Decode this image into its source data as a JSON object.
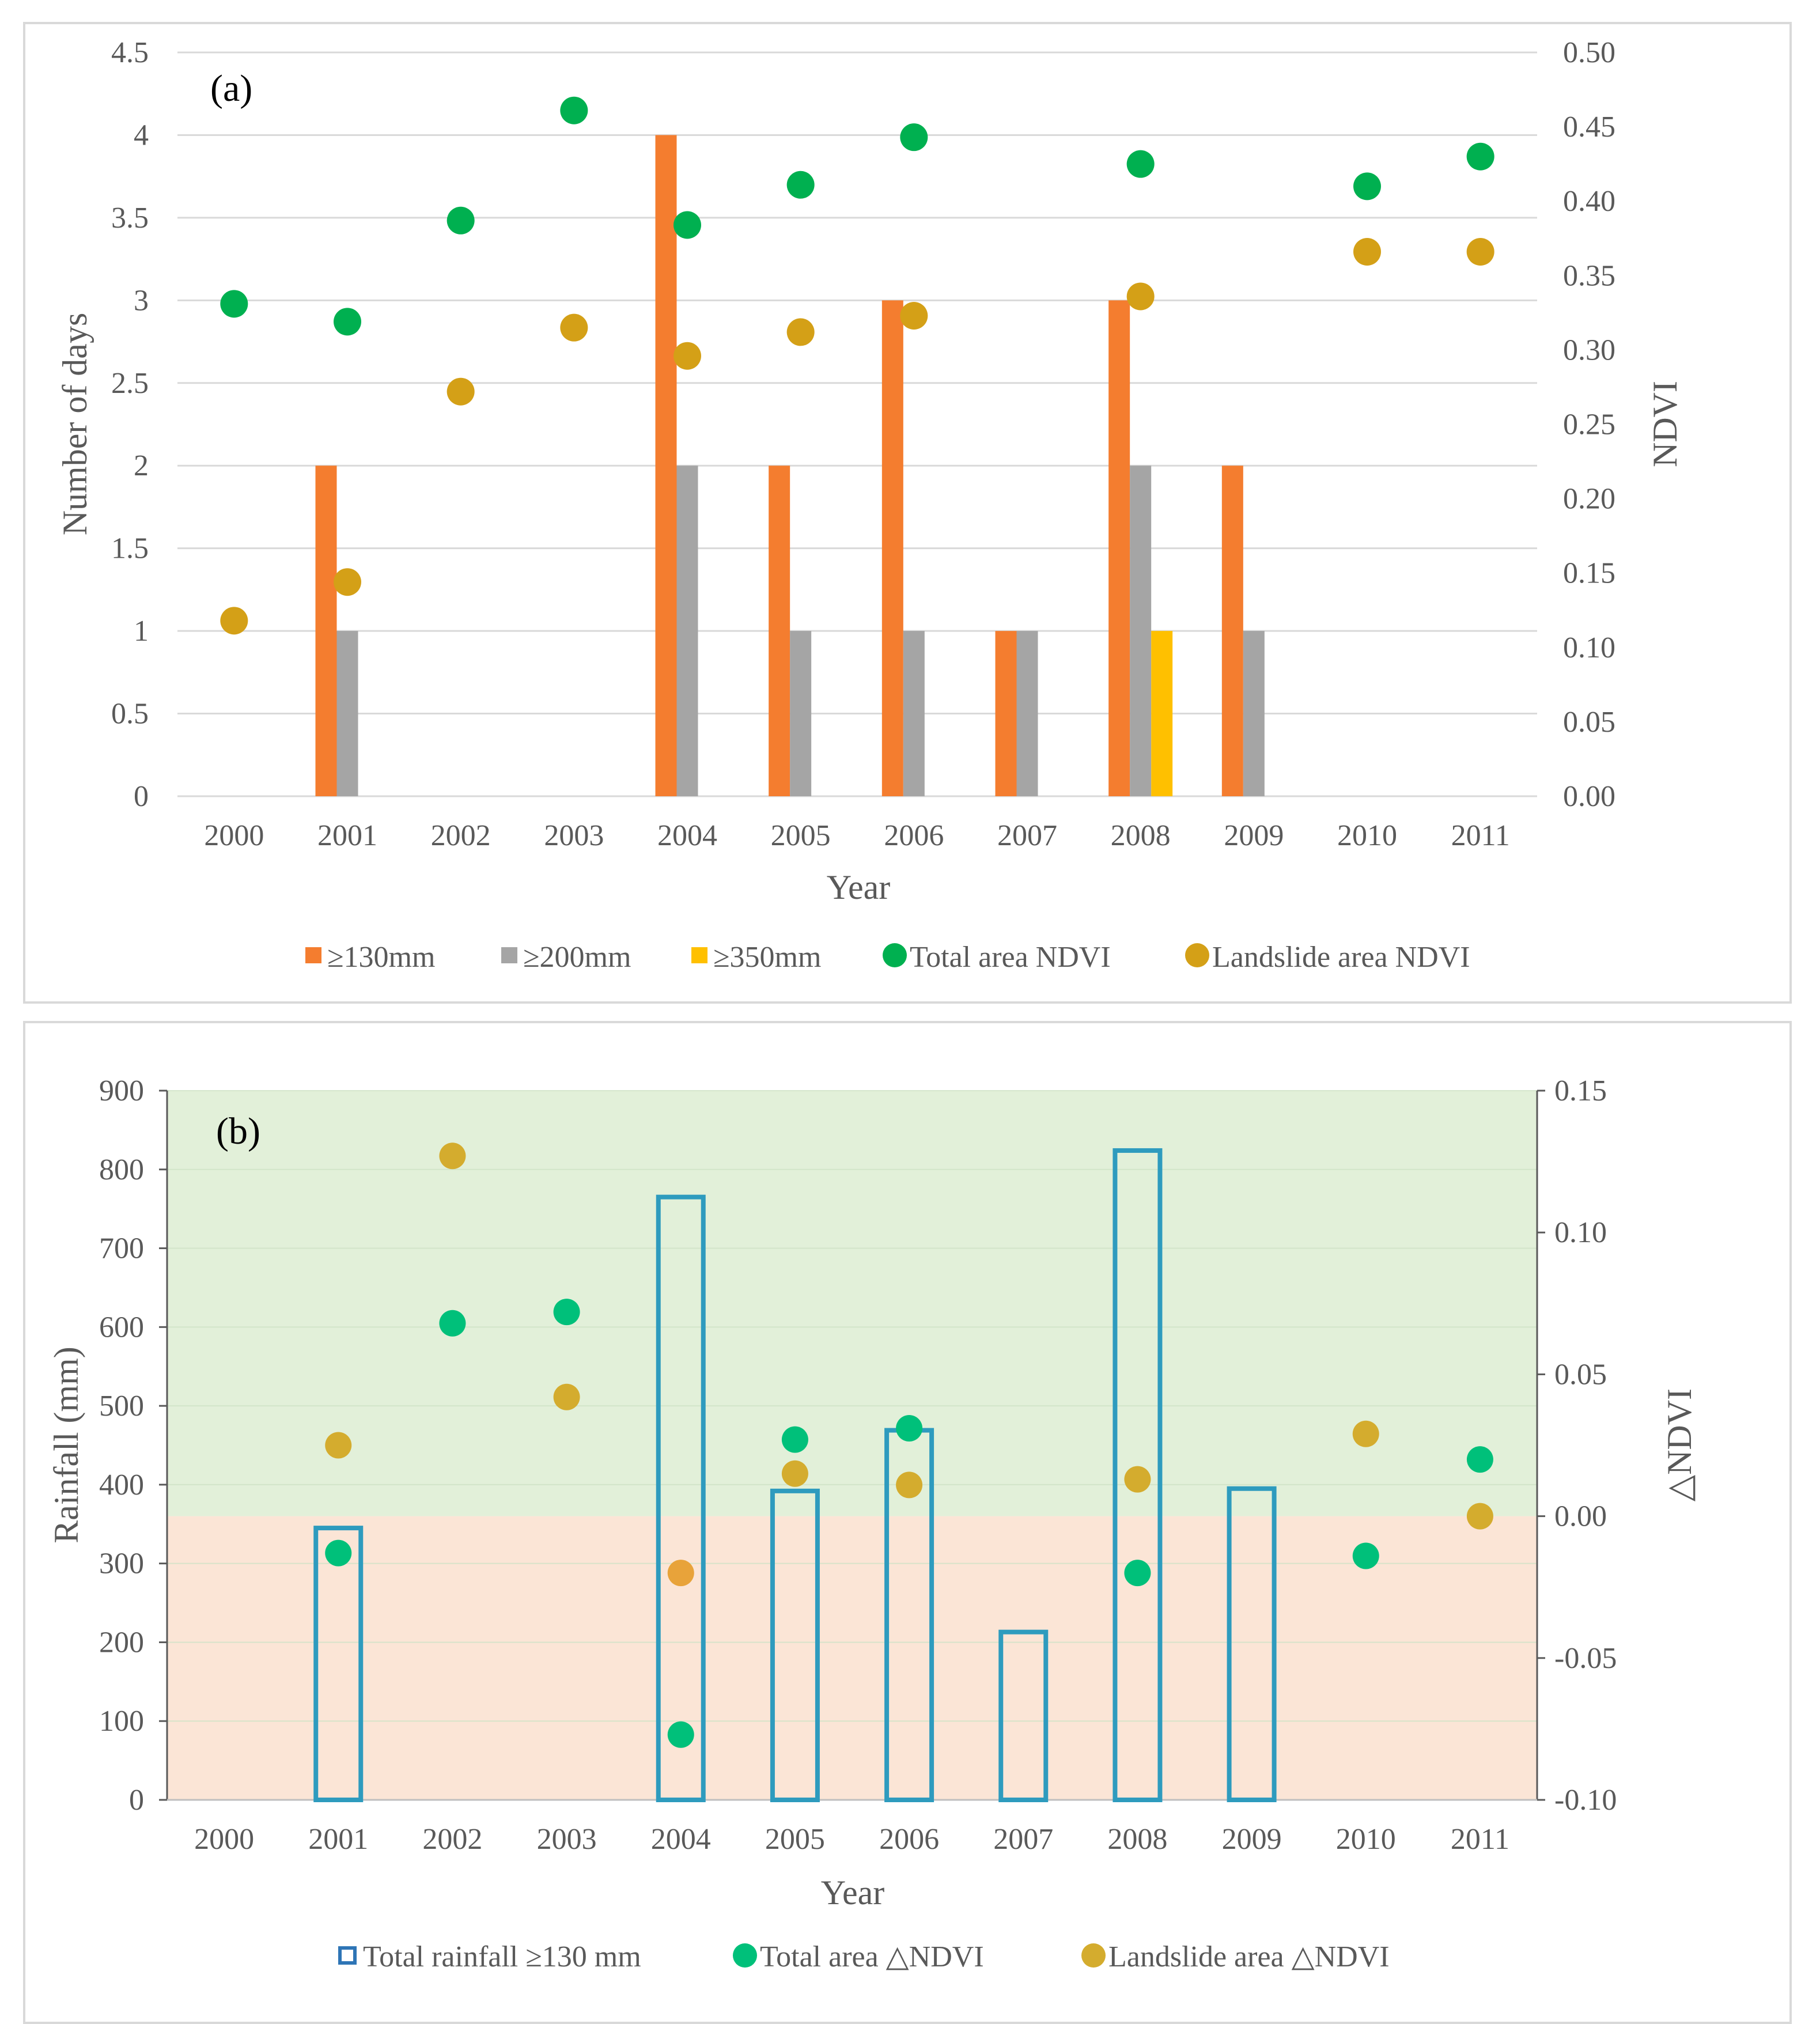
{
  "chart_data": [
    {
      "type": "bar",
      "panel_label": "(a)",
      "xlabel": "Year",
      "ylabel": "Number of days",
      "y2label": "NDVI",
      "ylim": [
        0,
        4.5
      ],
      "y2lim": [
        0,
        0.5
      ],
      "yticks": [
        "0",
        "0.5",
        "1",
        "1.5",
        "2",
        "2.5",
        "3",
        "3.5",
        "4",
        "4.5"
      ],
      "y2ticks": [
        "0.00",
        "0.05",
        "0.10",
        "0.15",
        "0.20",
        "0.25",
        "0.30",
        "0.35",
        "0.40",
        "0.45",
        "0.50"
      ],
      "categories": [
        "2000",
        "2001",
        "2002",
        "2003",
        "2004",
        "2005",
        "2006",
        "2007",
        "2008",
        "2009",
        "2010",
        "2011"
      ],
      "grid": true,
      "legend_position": "bottom",
      "series": [
        {
          "name": "≥130mm",
          "type": "bar",
          "axis": "left",
          "color": "#F47D2F",
          "values": [
            0,
            2,
            0,
            0,
            4,
            2,
            3,
            1,
            3,
            2,
            0,
            0
          ]
        },
        {
          "name": "≥200mm",
          "type": "bar",
          "axis": "left",
          "color": "#A5A5A5",
          "values": [
            0,
            1,
            0,
            0,
            2,
            1,
            1,
            1,
            2,
            1,
            0,
            0
          ]
        },
        {
          "name": "≥350mm",
          "type": "bar",
          "axis": "left",
          "color": "#FFC000",
          "values": [
            0,
            0,
            0,
            0,
            0,
            0,
            0,
            0,
            1,
            0,
            0,
            0
          ]
        },
        {
          "name": "Total area NDVI",
          "type": "scatter",
          "axis": "right",
          "color": "#00B050",
          "values": [
            0.331,
            0.319,
            0.387,
            0.461,
            0.384,
            0.411,
            0.443,
            null,
            0.425,
            null,
            0.41,
            0.43
          ]
        },
        {
          "name": "Landslide area NDVI",
          "type": "scatter",
          "axis": "right",
          "color": "#D4A017",
          "values": [
            0.118,
            0.144,
            0.272,
            0.315,
            0.296,
            0.312,
            0.323,
            null,
            0.336,
            null,
            0.366,
            0.366
          ]
        }
      ]
    },
    {
      "type": "bar",
      "panel_label": "(b)",
      "xlabel": "Year",
      "ylabel": "Rainfall (mm)",
      "y2label": "△NDVI",
      "ylim": [
        0,
        900
      ],
      "y2lim": [
        -0.1,
        0.15
      ],
      "yticks": [
        "0",
        "100",
        "200",
        "300",
        "400",
        "500",
        "600",
        "700",
        "800",
        "900"
      ],
      "y2ticks": [
        "-0.10",
        "-0.05",
        "0.00",
        "0.05",
        "0.10",
        "0.15"
      ],
      "categories": [
        "2000",
        "2001",
        "2002",
        "2003",
        "2004",
        "2005",
        "2006",
        "2007",
        "2008",
        "2009",
        "2010",
        "2011"
      ],
      "grid": true,
      "legend_position": "bottom",
      "background_bands": [
        {
          "from": 0,
          "to": 0.15,
          "axis": "right",
          "color": "#E2F0D9"
        },
        {
          "from": -0.1,
          "to": 0,
          "axis": "right",
          "color": "#FBE5D6"
        }
      ],
      "series": [
        {
          "name": "Total rainfall ≥130 mm",
          "type": "bar-outline",
          "axis": "left",
          "color": "#2E9BBE",
          "values": [
            0,
            345,
            0,
            0,
            765,
            392,
            469,
            213,
            824,
            395,
            0,
            0
          ]
        },
        {
          "name": "Total area △NDVI",
          "type": "scatter",
          "axis": "right",
          "color": "#00C07A",
          "values": [
            null,
            -0.013,
            0.068,
            0.072,
            -0.077,
            0.027,
            0.031,
            null,
            -0.02,
            null,
            -0.014,
            0.02
          ]
        },
        {
          "name": "Landslide area △NDVI",
          "type": "scatter",
          "axis": "right",
          "color": "#D4AC2E",
          "values": [
            null,
            0.025,
            0.127,
            0.042,
            -0.02,
            0.015,
            0.011,
            null,
            0.013,
            null,
            0.029,
            0.0
          ]
        }
      ]
    }
  ]
}
